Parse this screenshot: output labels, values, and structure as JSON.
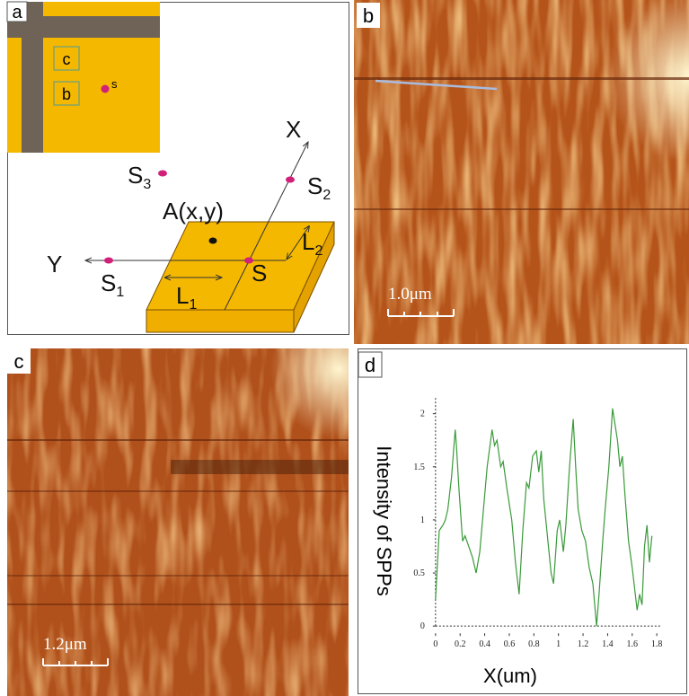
{
  "panel_labels": [
    "a",
    "b",
    "c",
    "d"
  ],
  "panel_a": {
    "inset_labels": [
      "c",
      "b",
      "s"
    ],
    "diagram_labels": [
      {
        "text": "X"
      },
      {
        "text": "S",
        "sub": "2"
      },
      {
        "text": "S",
        "sub": "3"
      },
      {
        "text": "A(x,y)"
      },
      {
        "text": "Y"
      },
      {
        "text": "S",
        "sub": "1"
      },
      {
        "text": "S"
      },
      {
        "text": "L",
        "sub": "2"
      },
      {
        "text": "L",
        "sub": "1"
      }
    ]
  },
  "panel_b": {
    "scale_bar": "1.0μm"
  },
  "panel_c": {
    "scale_bar": "1.2μm"
  },
  "chart_data": {
    "type": "line",
    "xlabel": "X(um)",
    "ylabel": "Intensity of SPPs",
    "x": [
      0,
      0.03,
      0.06,
      0.08,
      0.1,
      0.13,
      0.16,
      0.17,
      0.19,
      0.22,
      0.24,
      0.27,
      0.3,
      0.33,
      0.36,
      0.39,
      0.42,
      0.46,
      0.48,
      0.5,
      0.53,
      0.55,
      0.58,
      0.62,
      0.65,
      0.68,
      0.71,
      0.74,
      0.76,
      0.79,
      0.82,
      0.84,
      0.86,
      0.88,
      0.91,
      0.94,
      0.96,
      0.99,
      1.01,
      1.04,
      1.06,
      1.09,
      1.12,
      1.14,
      1.16,
      1.19,
      1.22,
      1.25,
      1.28,
      1.31,
      1.33,
      1.36,
      1.38,
      1.41,
      1.44,
      1.46,
      1.48,
      1.5,
      1.52,
      1.54,
      1.57,
      1.6,
      1.62,
      1.64,
      1.66,
      1.68,
      1.7,
      1.72,
      1.74,
      1.76
    ],
    "series": [
      {
        "color": "#3a9a3a",
        "values": [
          0.25,
          0.9,
          0.95,
          1.0,
          1.1,
          1.4,
          1.85,
          1.7,
          1.3,
          0.8,
          0.85,
          0.75,
          0.65,
          0.5,
          0.7,
          1.1,
          1.5,
          1.85,
          1.7,
          1.75,
          1.5,
          1.55,
          1.3,
          1.0,
          0.6,
          0.3,
          0.9,
          1.35,
          1.3,
          1.6,
          1.65,
          1.45,
          1.65,
          1.2,
          0.85,
          0.5,
          0.4,
          0.9,
          1.0,
          0.7,
          0.95,
          1.5,
          1.95,
          1.5,
          1.1,
          0.9,
          0.8,
          0.55,
          0.4,
          0.0,
          0.3,
          0.8,
          1.1,
          1.5,
          2.05,
          1.9,
          1.75,
          1.5,
          1.6,
          1.25,
          0.8,
          0.55,
          0.35,
          0.15,
          0.3,
          0.2,
          0.75,
          0.95,
          0.6,
          0.85
        ]
      }
    ],
    "xlim": [
      -0.05,
      1.85
    ],
    "ylim": [
      -0.1,
      2.2
    ],
    "xticks": [
      0,
      0.2,
      0.4,
      0.6,
      0.8,
      1,
      1.2,
      1.4,
      1.6,
      1.8
    ],
    "yticks": [
      0,
      0.5,
      1,
      1.5,
      2
    ]
  }
}
